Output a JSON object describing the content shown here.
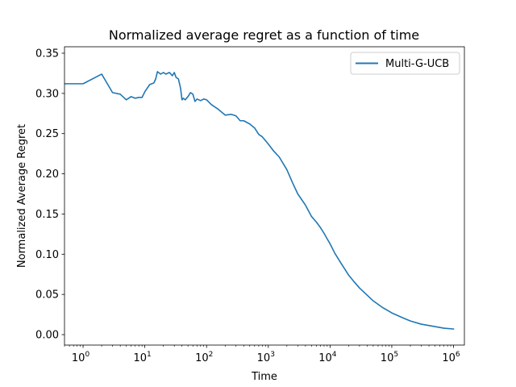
{
  "chart_data": {
    "type": "line",
    "title": "Normalized average regret as a function of time",
    "xlabel": "Time",
    "ylabel": "Normalized Average Regret",
    "xscale": "log",
    "xlim": [
      0.5,
      1500000
    ],
    "ylim": [
      -0.013,
      0.358
    ],
    "grid": false,
    "legend": {
      "placement": "top-right",
      "entries": [
        "Multi-G-UCB"
      ]
    },
    "x_ticks": [
      {
        "base": "10",
        "exp": "0",
        "value": 1
      },
      {
        "base": "10",
        "exp": "1",
        "value": 10
      },
      {
        "base": "10",
        "exp": "2",
        "value": 100
      },
      {
        "base": "10",
        "exp": "3",
        "value": 1000
      },
      {
        "base": "10",
        "exp": "4",
        "value": 10000
      },
      {
        "base": "10",
        "exp": "5",
        "value": 100000
      },
      {
        "base": "10",
        "exp": "6",
        "value": 1000000
      }
    ],
    "y_ticks": [
      "0.00",
      "0.05",
      "0.10",
      "0.15",
      "0.20",
      "0.25",
      "0.30",
      "0.35"
    ],
    "series": [
      {
        "name": "Multi-G-UCB",
        "color": "#1f77b4",
        "x": [
          0.5,
          1,
          2,
          3,
          4,
          5,
          6,
          7,
          8,
          9,
          10,
          12,
          14,
          15,
          16,
          18,
          20,
          22,
          25,
          28,
          30,
          32,
          35,
          38,
          40,
          42,
          45,
          50,
          55,
          60,
          65,
          70,
          80,
          90,
          100,
          120,
          150,
          180,
          200,
          250,
          300,
          350,
          400,
          500,
          600,
          700,
          800,
          1000,
          1200,
          1500,
          2000,
          2500,
          3000,
          4000,
          5000,
          6000,
          7000,
          8000,
          9000,
          10000,
          12000,
          15000,
          20000,
          25000,
          30000,
          40000,
          50000,
          70000,
          100000,
          150000,
          200000,
          300000,
          500000,
          700000,
          1000000
        ],
        "y": [
          0.312,
          0.312,
          0.324,
          0.301,
          0.299,
          0.292,
          0.296,
          0.294,
          0.295,
          0.295,
          0.302,
          0.311,
          0.313,
          0.318,
          0.327,
          0.324,
          0.326,
          0.324,
          0.326,
          0.322,
          0.326,
          0.32,
          0.318,
          0.306,
          0.292,
          0.294,
          0.292,
          0.296,
          0.301,
          0.299,
          0.29,
          0.293,
          0.291,
          0.293,
          0.292,
          0.286,
          0.281,
          0.276,
          0.273,
          0.274,
          0.272,
          0.266,
          0.266,
          0.262,
          0.257,
          0.249,
          0.246,
          0.237,
          0.229,
          0.221,
          0.205,
          0.188,
          0.175,
          0.161,
          0.147,
          0.14,
          0.133,
          0.126,
          0.119,
          0.113,
          0.101,
          0.089,
          0.074,
          0.065,
          0.058,
          0.049,
          0.042,
          0.034,
          0.027,
          0.021,
          0.017,
          0.013,
          0.01,
          0.008,
          0.007
        ]
      }
    ]
  }
}
